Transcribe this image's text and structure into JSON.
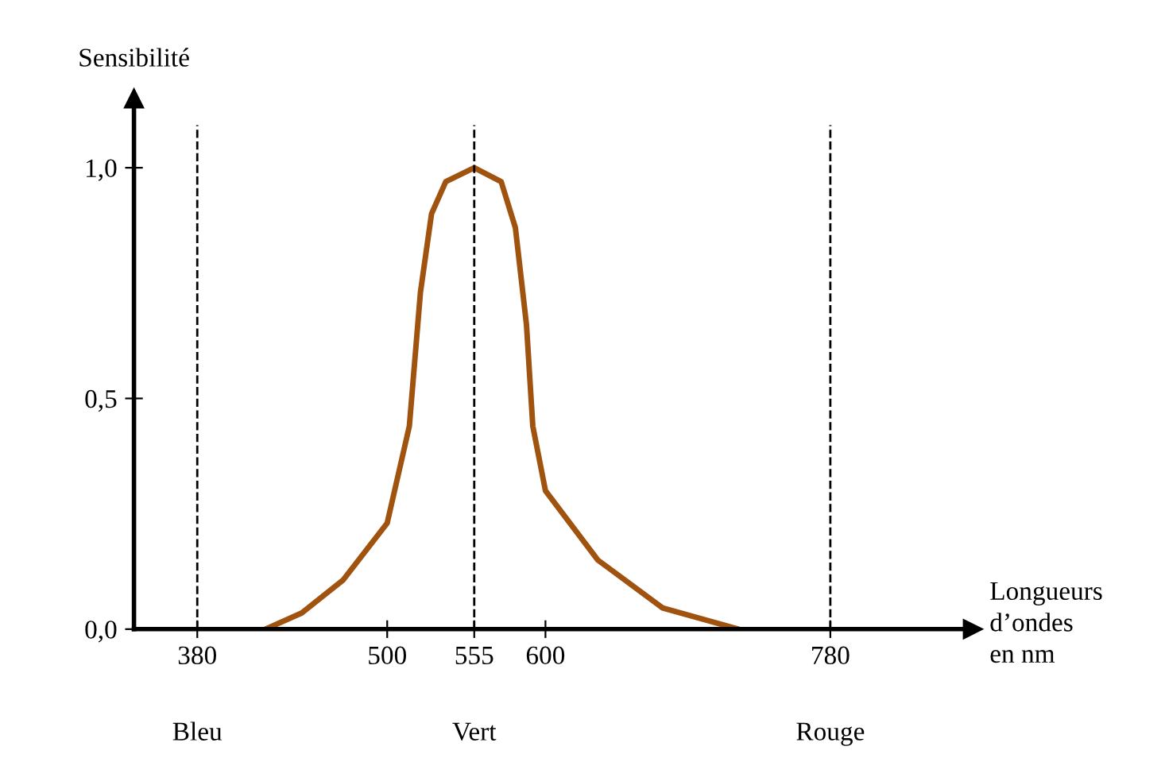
{
  "chart_data": {
    "type": "line",
    "ylabel": "Sensibilité",
    "xlabel": "Longueurs\nd’ondes\nen nm",
    "x": [
      423,
      446,
      472,
      500,
      514,
      521,
      528,
      537,
      555,
      572,
      581,
      588,
      592,
      600,
      633,
      674,
      722
    ],
    "series": [
      {
        "color": "#a0520f",
        "values": [
          0,
          0.035,
          0.106,
          0.23,
          0.44,
          0.73,
          0.9,
          0.97,
          1.0,
          0.97,
          0.87,
          0.66,
          0.44,
          0.3,
          0.15,
          0.046,
          0
        ]
      }
    ],
    "xlim": [
      340,
      870
    ],
    "ylim": [
      0,
      1.15
    ],
    "xticks": [
      380,
      500,
      555,
      600,
      780
    ],
    "yticks": [
      {
        "value": 0,
        "label": "0,0"
      },
      {
        "value": 0.5,
        "label": "0,5"
      },
      {
        "value": 1.0,
        "label": "1,0"
      }
    ],
    "ref_lines": [
      {
        "axis": "x",
        "value": 380,
        "line_style": "dashed"
      },
      {
        "axis": "x",
        "value": 555,
        "line_style": "dashed"
      },
      {
        "axis": "x",
        "value": 780,
        "line_style": "dashed"
      }
    ],
    "annotations": [
      "Bleu",
      "Vert",
      "Rouge"
    ],
    "grid": false,
    "legend": false,
    "line_style": "solid",
    "marker": "none"
  }
}
